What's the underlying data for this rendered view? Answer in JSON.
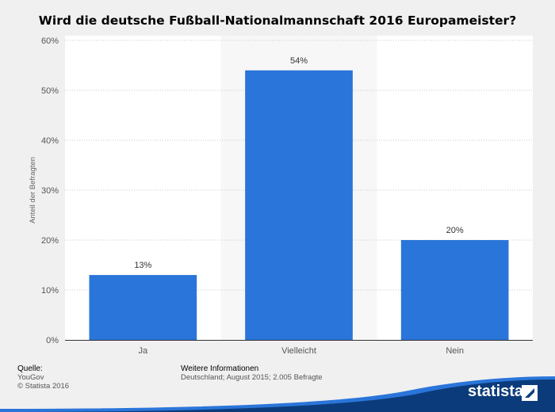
{
  "chart_data": {
    "type": "bar",
    "title": "Wird die deutsche Fußball-Nationalmannschaft 2016 Europameister?",
    "ylabel": "Anteil der Befragten",
    "xlabel": "",
    "categories": [
      "Ja",
      "Vielleicht",
      "Nein"
    ],
    "values": [
      13,
      54,
      20
    ],
    "value_labels": [
      "13%",
      "54%",
      "20%"
    ],
    "ylim": [
      0,
      60
    ],
    "yticks": [
      0,
      10,
      20,
      30,
      40,
      50,
      60
    ],
    "ytick_labels": [
      "0%",
      "10%",
      "20%",
      "30%",
      "40%",
      "50%",
      "60%"
    ],
    "highlighted_category_index": 1,
    "grid": true,
    "bar_color": "#2a75d9"
  },
  "footer": {
    "source_heading": "Quelle:",
    "source": "YouGov",
    "copyright": "© Statista 2016",
    "info_heading": "Weitere Informationen",
    "info": "Deutschland; August 2015; 2.005 Befragte"
  },
  "brand": {
    "name": "statista",
    "color": "#0b3b7a"
  }
}
